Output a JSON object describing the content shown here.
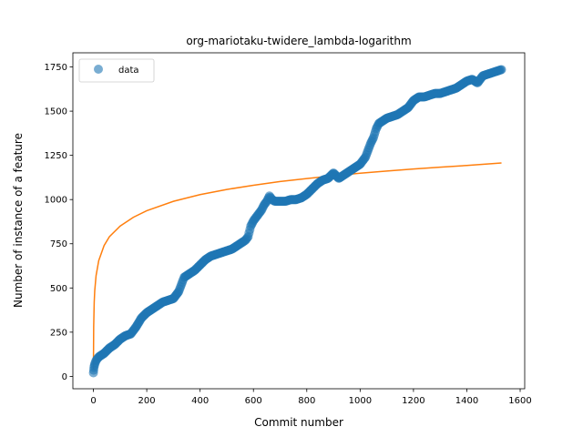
{
  "chart_data": {
    "type": "scatter",
    "title": "org-mariotaku-twidere_lambda-logarithm",
    "xlabel": "Commit number",
    "ylabel": "Number of instance of a feature",
    "xlim": [
      -77,
      1617
    ],
    "ylim": [
      -70,
      1830
    ],
    "xticks": [
      0,
      200,
      400,
      600,
      800,
      1000,
      1200,
      1400,
      1600
    ],
    "yticks": [
      0,
      250,
      500,
      750,
      1000,
      1250,
      1500,
      1750
    ],
    "legend": {
      "position": "top-left",
      "entries": [
        "data"
      ]
    },
    "colors": {
      "data": "#1f77b4",
      "fit": "#ff7f0e"
    },
    "series": [
      {
        "name": "data",
        "kind": "scatter",
        "points": [
          [
            0,
            20
          ],
          [
            2,
            50
          ],
          [
            5,
            70
          ],
          [
            10,
            90
          ],
          [
            20,
            110
          ],
          [
            40,
            130
          ],
          [
            60,
            160
          ],
          [
            80,
            180
          ],
          [
            100,
            210
          ],
          [
            120,
            230
          ],
          [
            140,
            240
          ],
          [
            160,
            280
          ],
          [
            180,
            330
          ],
          [
            200,
            360
          ],
          [
            220,
            380
          ],
          [
            240,
            400
          ],
          [
            260,
            420
          ],
          [
            280,
            430
          ],
          [
            300,
            440
          ],
          [
            320,
            480
          ],
          [
            330,
            520
          ],
          [
            340,
            560
          ],
          [
            360,
            580
          ],
          [
            380,
            600
          ],
          [
            400,
            630
          ],
          [
            420,
            660
          ],
          [
            440,
            680
          ],
          [
            460,
            690
          ],
          [
            480,
            700
          ],
          [
            500,
            710
          ],
          [
            520,
            720
          ],
          [
            540,
            740
          ],
          [
            560,
            760
          ],
          [
            570,
            770
          ],
          [
            580,
            790
          ],
          [
            590,
            850
          ],
          [
            600,
            880
          ],
          [
            610,
            900
          ],
          [
            620,
            920
          ],
          [
            630,
            940
          ],
          [
            640,
            970
          ],
          [
            650,
            990
          ],
          [
            660,
            1020
          ],
          [
            670,
            1000
          ],
          [
            680,
            990
          ],
          [
            700,
            990
          ],
          [
            720,
            990
          ],
          [
            740,
            1000
          ],
          [
            760,
            1000
          ],
          [
            780,
            1010
          ],
          [
            800,
            1030
          ],
          [
            820,
            1060
          ],
          [
            840,
            1090
          ],
          [
            860,
            1110
          ],
          [
            880,
            1120
          ],
          [
            900,
            1150
          ],
          [
            920,
            1120
          ],
          [
            940,
            1140
          ],
          [
            960,
            1160
          ],
          [
            980,
            1180
          ],
          [
            1000,
            1200
          ],
          [
            1010,
            1220
          ],
          [
            1020,
            1240
          ],
          [
            1030,
            1280
          ],
          [
            1040,
            1320
          ],
          [
            1050,
            1350
          ],
          [
            1060,
            1400
          ],
          [
            1070,
            1430
          ],
          [
            1080,
            1440
          ],
          [
            1100,
            1460
          ],
          [
            1120,
            1470
          ],
          [
            1140,
            1480
          ],
          [
            1160,
            1500
          ],
          [
            1180,
            1520
          ],
          [
            1200,
            1560
          ],
          [
            1220,
            1580
          ],
          [
            1240,
            1580
          ],
          [
            1260,
            1590
          ],
          [
            1280,
            1600
          ],
          [
            1300,
            1600
          ],
          [
            1320,
            1610
          ],
          [
            1340,
            1620
          ],
          [
            1360,
            1630
          ],
          [
            1380,
            1650
          ],
          [
            1400,
            1670
          ],
          [
            1420,
            1680
          ],
          [
            1440,
            1660
          ],
          [
            1460,
            1700
          ],
          [
            1480,
            1710
          ],
          [
            1500,
            1720
          ],
          [
            1520,
            1730
          ],
          [
            1530,
            1735
          ]
        ]
      },
      {
        "name": "",
        "kind": "line",
        "function": "logarithm",
        "x": [
          0,
          1,
          3,
          5,
          10,
          20,
          40,
          60,
          100,
          150,
          200,
          300,
          400,
          500,
          600,
          700,
          800,
          900,
          1000,
          1100,
          1200,
          1300,
          1400,
          1530
        ],
        "y": [
          40,
          280,
          420,
          485,
          570,
          655,
          740,
          790,
          850,
          900,
          937,
          990,
          1028,
          1057,
          1081,
          1102,
          1119,
          1135,
          1149,
          1161,
          1173,
          1183,
          1193,
          1207
        ]
      }
    ]
  }
}
